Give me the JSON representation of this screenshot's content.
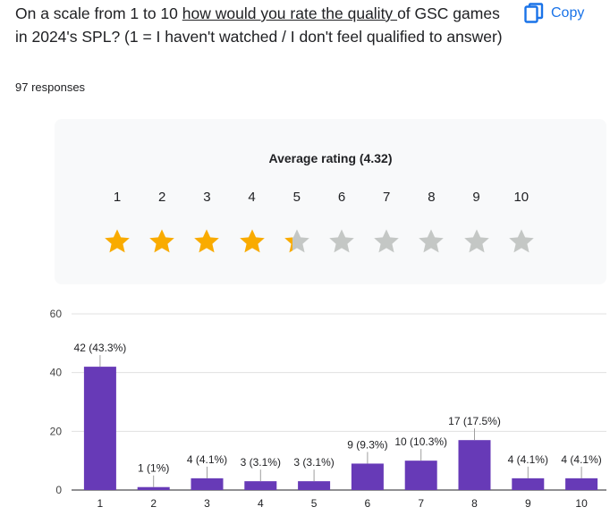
{
  "question": {
    "before": "On a scale from 1 to 10 ",
    "underlined": "how would you rate the quality ",
    "after": "of GSC games in 2024's SPL? (1 = I haven't watched / I don't feel qualified to answer)"
  },
  "responses_label": "97 responses",
  "copy_label": "Copy",
  "rating_summary": {
    "title": "Average rating (4.32)",
    "average": 4.32,
    "scale": [
      "1",
      "2",
      "3",
      "4",
      "5",
      "6",
      "7",
      "8",
      "9",
      "10"
    ],
    "filled_color": "#f9ab00",
    "empty_color": "#c4c7c5"
  },
  "colors": {
    "accent": "#1a73e8",
    "bar": "#673ab7"
  },
  "chart_data": {
    "type": "bar",
    "categories": [
      "1",
      "2",
      "3",
      "4",
      "5",
      "6",
      "7",
      "8",
      "9",
      "10"
    ],
    "values": [
      42,
      1,
      4,
      3,
      3,
      9,
      10,
      17,
      4,
      4
    ],
    "data_labels": [
      "42 (43.3%)",
      "1 (1%)",
      "4 (4.1%)",
      "3 (3.1%)",
      "3 (3.1%)",
      "9 (9.3%)",
      "10 (10.3%)",
      "17 (17.5%)",
      "4 (4.1%)",
      "4 (4.1%)"
    ],
    "yticks": [
      "0",
      "20",
      "40",
      "60"
    ],
    "ylim": [
      0,
      60
    ],
    "title": "",
    "xlabel": "",
    "ylabel": "",
    "grid": true
  }
}
